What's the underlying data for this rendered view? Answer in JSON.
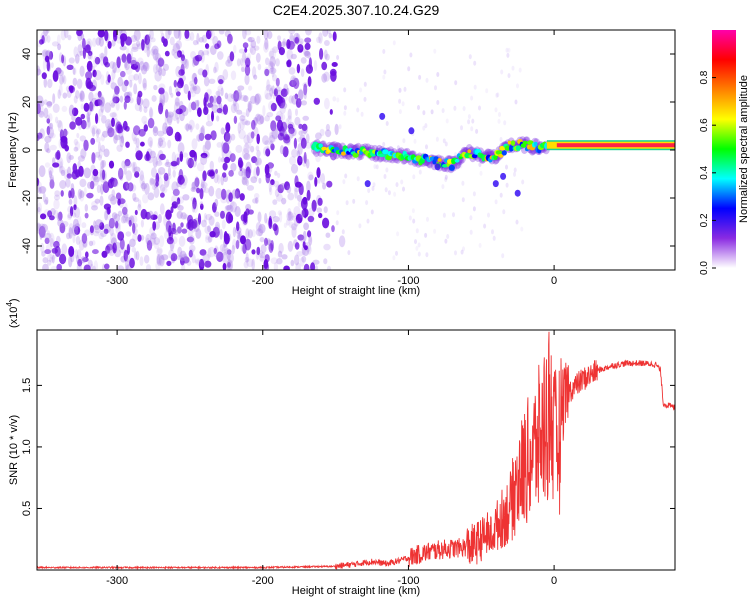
{
  "title": "C2E4.2025.307.10.24.G29",
  "chart_data": [
    {
      "type": "heatmap",
      "title": "C2E4.2025.307.10.24.G29",
      "xlabel": "Height of straight line (km)",
      "ylabel": "Frequency (Hz)",
      "xlim": [
        -355,
        83
      ],
      "ylim": [
        -50,
        50
      ],
      "xticks": [
        -300,
        -200,
        -100,
        0
      ],
      "xtick_labels": [
        "-300",
        "-200",
        "-100",
        "0"
      ],
      "yticks": [
        -40,
        -20,
        0,
        20,
        40
      ],
      "ytick_labels": [
        "-40",
        "-20",
        "0",
        "20",
        "40"
      ],
      "colorbar": {
        "label": "Normalized spectral amplitude",
        "range": [
          0,
          1
        ],
        "ticks": [
          0.0,
          0.2,
          0.4,
          0.6,
          0.8
        ],
        "tick_labels": [
          "0.0",
          "0.2",
          "0.4",
          "0.6",
          "0.8"
        ],
        "colors": [
          "#ffffff",
          "#8a2be2",
          "#0000ff",
          "#00ffff",
          "#00ff00",
          "#ffff00",
          "#ff8000",
          "#ff0000",
          "#ff00aa"
        ]
      },
      "signal_ridge": {
        "x": [
          -165,
          -150,
          -130,
          -110,
          -100,
          -90,
          -80,
          -70,
          -60,
          -50,
          -40,
          -30,
          -20,
          -10,
          0,
          20,
          40,
          60,
          83
        ],
        "y": [
          1,
          0,
          -1,
          -2,
          -3,
          -4,
          -5,
          -6,
          -1,
          -2,
          -3,
          2,
          2,
          1,
          2,
          2,
          2,
          2,
          2
        ]
      },
      "noise_region_x": [
        -355,
        -150
      ],
      "noise_color": "#6a0dde"
    },
    {
      "type": "line",
      "xlabel": "Height of straight line (km)",
      "ylabel": "SNR (10 * v/v)",
      "y_multiplier": "(x10",
      "y_multiplier_exp": "4",
      "y_multiplier_close": ")",
      "xlim": [
        -355,
        83
      ],
      "ylim": [
        0,
        1.95
      ],
      "xticks": [
        -300,
        -200,
        -100,
        0
      ],
      "xtick_labels": [
        "-300",
        "-200",
        "-100",
        "0"
      ],
      "yticks": [
        0.5,
        1.0,
        1.5
      ],
      "ytick_labels": [
        "0.5",
        "1.0",
        "1.5"
      ],
      "color": "#ee3333",
      "series": [
        {
          "name": "SNR",
          "x": [
            -355,
            -300,
            -250,
            -200,
            -175,
            -150,
            -135,
            -125,
            -115,
            -105,
            -95,
            -85,
            -75,
            -65,
            -55,
            -45,
            -38,
            -30,
            -25,
            -20,
            -15,
            -10,
            -5,
            -2,
            0,
            5,
            10,
            20,
            30,
            40,
            50,
            60,
            70,
            73,
            75,
            83
          ],
          "y": [
            0.02,
            0.02,
            0.02,
            0.02,
            0.025,
            0.03,
            0.05,
            0.07,
            0.05,
            0.08,
            0.12,
            0.15,
            0.17,
            0.18,
            0.2,
            0.3,
            0.45,
            0.6,
            0.85,
            1.0,
            1.1,
            1.25,
            1.45,
            1.6,
            1.2,
            1.3,
            1.45,
            1.55,
            1.62,
            1.66,
            1.68,
            1.68,
            1.67,
            1.62,
            1.35,
            1.32
          ]
        }
      ]
    }
  ]
}
